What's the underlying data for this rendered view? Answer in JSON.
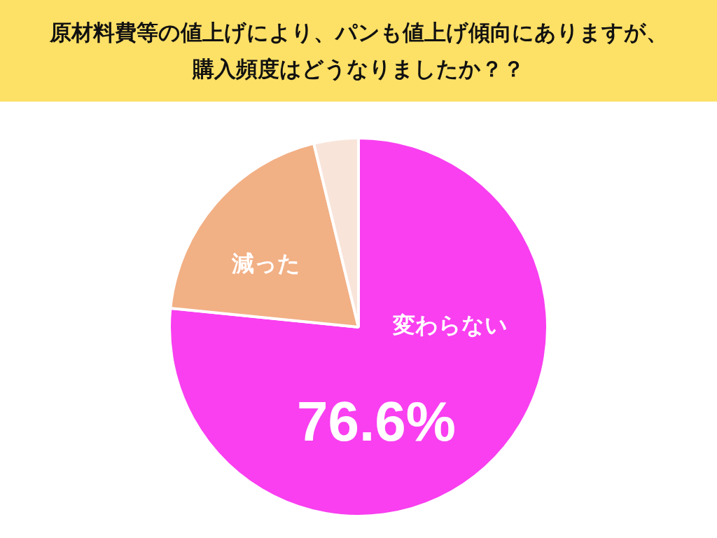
{
  "chart_data": {
    "type": "pie",
    "title": "原材料費等の値上げにより、パンも値上げ傾向にありますが、購入頻度はどうなりましたか？？",
    "categories": [
      "変わらない",
      "減った",
      null
    ],
    "values": [
      76.6,
      19.6,
      3.8
    ],
    "colors": [
      "#f93ff0",
      "#f2b085",
      "#f9e4da"
    ],
    "value_labels": [
      "76.6%",
      null,
      null
    ],
    "legend": false
  }
}
